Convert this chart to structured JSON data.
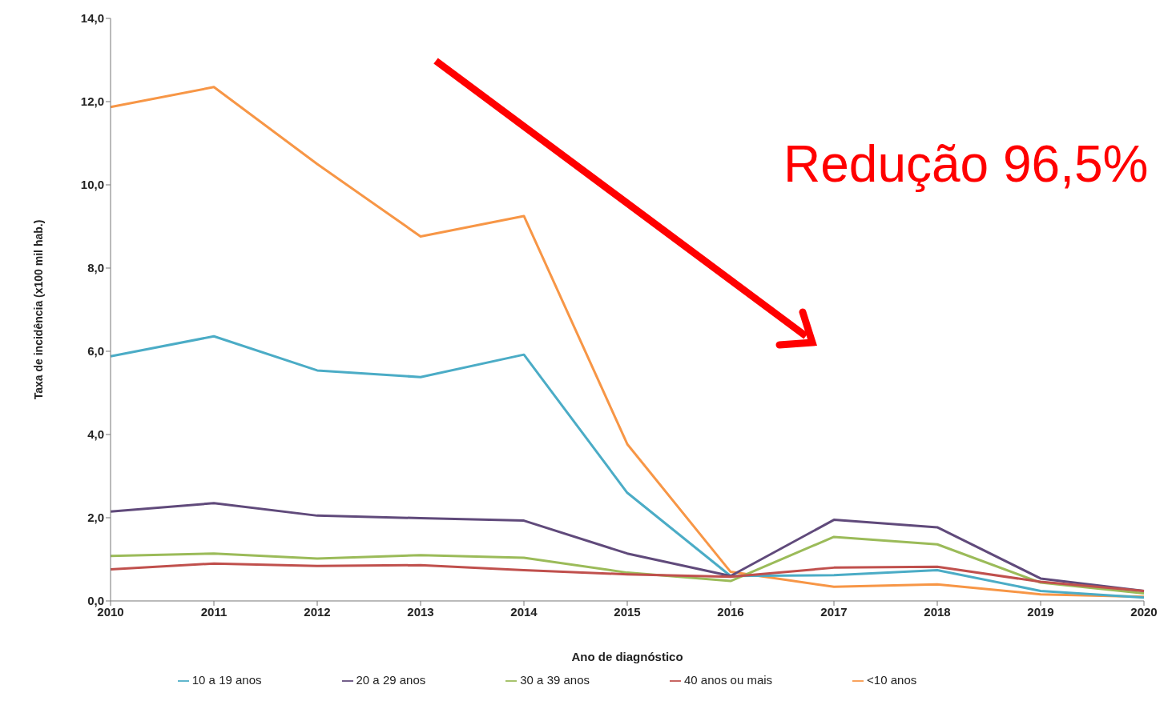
{
  "chart_data": {
    "type": "line",
    "xlabel": "Ano de diagnóstico",
    "ylabel": "Taxa de incidência (x100 mil hab.)",
    "categories": [
      "2010",
      "2011",
      "2012",
      "2013",
      "2014",
      "2015",
      "2016",
      "2017",
      "2018",
      "2019",
      "2020"
    ],
    "series": [
      {
        "name": "<10 anos",
        "color": "#f79646",
        "values": [
          11.87,
          12.35,
          10.5,
          8.76,
          9.25,
          3.77,
          0.7,
          0.34,
          0.4,
          0.16,
          0.1
        ]
      },
      {
        "name": "10 a 19 anos",
        "color": "#4bacc6",
        "values": [
          5.88,
          6.36,
          5.54,
          5.38,
          5.92,
          2.6,
          0.6,
          0.62,
          0.74,
          0.24,
          0.08
        ]
      },
      {
        "name": "20 a 29 anos",
        "color": "#604a7b",
        "values": [
          2.15,
          2.35,
          2.05,
          1.99,
          1.93,
          1.14,
          0.6,
          1.95,
          1.77,
          0.54,
          0.24
        ]
      },
      {
        "name": "30 a 39 anos",
        "color": "#9bbb59",
        "values": [
          1.08,
          1.14,
          1.02,
          1.1,
          1.04,
          0.68,
          0.48,
          1.54,
          1.36,
          0.44,
          0.18
        ]
      },
      {
        "name": "40 anos ou mais",
        "color": "#c0504d",
        "values": [
          0.76,
          0.9,
          0.84,
          0.86,
          0.74,
          0.64,
          0.58,
          0.8,
          0.82,
          0.46,
          0.24
        ]
      }
    ],
    "ylim": [
      0,
      14
    ],
    "yticks": [
      {
        "value": 0,
        "label": "0,0"
      },
      {
        "value": 2,
        "label": "2,0"
      },
      {
        "value": 4,
        "label": "4,0"
      },
      {
        "value": 6,
        "label": "6,0"
      },
      {
        "value": 8,
        "label": "8,0"
      },
      {
        "value": 10,
        "label": "10,0"
      },
      {
        "value": 12,
        "label": "12,0"
      },
      {
        "value": 14,
        "label": "14,0"
      }
    ],
    "grid": false,
    "legend": "bottom",
    "marker": "none",
    "line_style": "solid",
    "annotations": [
      "Redução 96,5%"
    ]
  }
}
